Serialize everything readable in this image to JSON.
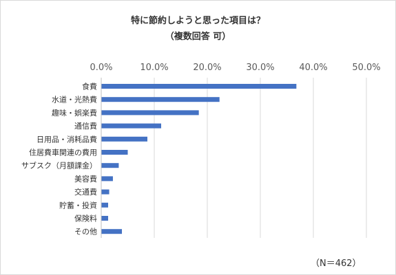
{
  "chart_data": {
    "type": "bar",
    "orientation": "horizontal",
    "title": "特に節約しようと思った項目は？",
    "subtitle": "（複数回答 可）",
    "note": "（N＝462）",
    "categories": [
      "食費",
      "水道・光熱費",
      "趣味・娯楽費",
      "通信費",
      "日用品・消耗品費",
      "住居費車関連の費用",
      "サブスク（月額課金）",
      "美容費",
      "交通費",
      "貯蓄・投資",
      "保険料",
      "その他"
    ],
    "values": [
      36.8,
      22.3,
      18.4,
      11.3,
      8.7,
      5.0,
      3.3,
      2.2,
      1.5,
      1.3,
      1.3,
      3.9
    ],
    "x_ticks": [
      "0.0%",
      "10.0%",
      "20.0%",
      "30.0%",
      "40.0%",
      "50.0%"
    ],
    "xlim": [
      0,
      50
    ],
    "axis_position": "top",
    "grid": true,
    "bar_color": "#4472c4",
    "grid_color": "#d9d9d9"
  }
}
